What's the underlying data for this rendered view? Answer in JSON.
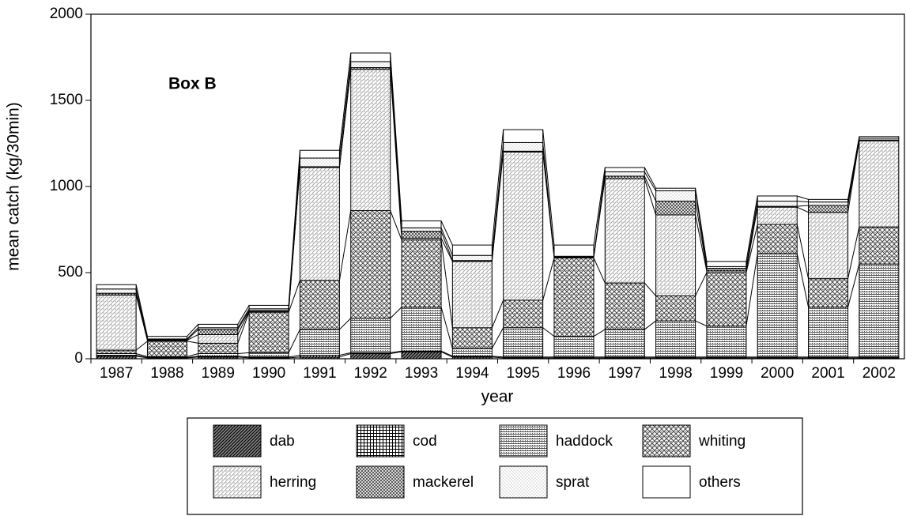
{
  "chart_data": {
    "type": "stacked_bar",
    "annotation": "Box B",
    "xlabel": "year",
    "ylabel": "mean catch (kg/30min)",
    "categories": [
      "1987",
      "1988",
      "1989",
      "1990",
      "1991",
      "1992",
      "1993",
      "1994",
      "1995",
      "1996",
      "1997",
      "1998",
      "1999",
      "2000",
      "2001",
      "2002"
    ],
    "ylim": [
      0,
      2000
    ],
    "yticks": [
      0,
      500,
      1000,
      1500,
      2000
    ],
    "series": [
      {
        "name": "dab",
        "values": [
          15,
          5,
          10,
          5,
          10,
          30,
          40,
          10,
          5,
          5,
          5,
          5,
          5,
          5,
          5,
          5
        ]
      },
      {
        "name": "cod",
        "values": [
          5,
          2,
          5,
          5,
          10,
          5,
          5,
          5,
          5,
          5,
          5,
          5,
          5,
          5,
          5,
          5
        ]
      },
      {
        "name": "haddock",
        "values": [
          10,
          5,
          15,
          25,
          150,
          200,
          255,
          45,
          170,
          120,
          160,
          210,
          180,
          600,
          290,
          540
        ]
      },
      {
        "name": "whiting",
        "values": [
          20,
          90,
          60,
          235,
          285,
          625,
          390,
          120,
          160,
          455,
          270,
          145,
          310,
          170,
          165,
          215
        ]
      },
      {
        "name": "herring",
        "values": [
          320,
          5,
          50,
          5,
          655,
          820,
          10,
          385,
          860,
          5,
          605,
          470,
          10,
          100,
          385,
          500
        ]
      },
      {
        "name": "mackerel",
        "values": [
          10,
          3,
          30,
          5,
          5,
          10,
          40,
          5,
          5,
          0,
          15,
          80,
          15,
          5,
          40,
          5
        ]
      },
      {
        "name": "sprat",
        "values": [
          25,
          5,
          10,
          10,
          50,
          35,
          20,
          30,
          50,
          5,
          25,
          60,
          10,
          30,
          20,
          10
        ]
      },
      {
        "name": "others",
        "values": [
          25,
          15,
          20,
          20,
          45,
          50,
          40,
          60,
          75,
          65,
          25,
          15,
          30,
          30,
          15,
          10
        ]
      }
    ]
  }
}
